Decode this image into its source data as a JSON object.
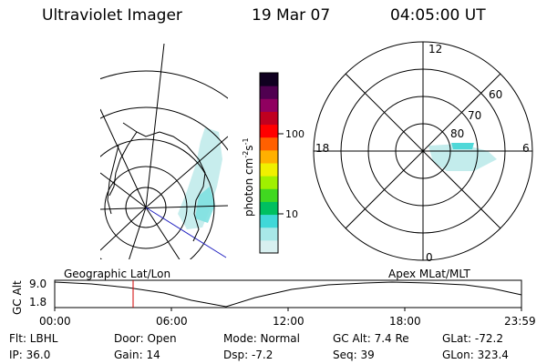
{
  "header": {
    "instrument": "Ultraviolet Imager",
    "date": "19 Mar 07",
    "time": "04:05:00 UT"
  },
  "colorbar": {
    "unit_label": "photon cm",
    "unit_exp1": "-2",
    "unit_mid": "s",
    "unit_exp2": "-1",
    "tick_100": "100",
    "tick_10": "10",
    "colors": [
      "#d8f0f0",
      "#a8e8e8",
      "#40d8d8",
      "#00c060",
      "#40d820",
      "#a0f000",
      "#f0f000",
      "#ffb000",
      "#ff6000",
      "#ff0000",
      "#c00020",
      "#900060",
      "#500050",
      "#100020"
    ]
  },
  "geo_map": {
    "caption": "Geographic Lat/Lon"
  },
  "polar_map": {
    "caption": "Apex MLat/MLT",
    "mlt_12": "12",
    "mlt_6": "6",
    "mlt_18": "18",
    "mlt_0": "0",
    "lat_60": "60",
    "lat_70": "70",
    "lat_80": "80"
  },
  "orbit_plot": {
    "ylabel": "GC Alt",
    "ytick_top": "9.0",
    "ytick_bottom": "1.8",
    "xticks": [
      "00:00",
      "06:00",
      "12:00",
      "18:00",
      "23:59"
    ],
    "current_time_marker_color": "#d00000"
  },
  "status": {
    "flt": "Flt: LBHL",
    "ip": "IP: 36.0",
    "door": "Door: Open",
    "gain": "Gain: 14",
    "mode": "Mode: Normal",
    "dsp": "Dsp:    -7.2",
    "gcalt": "GC Alt: 7.4 Re",
    "seq": "Seq: 39",
    "glat": "GLat: -72.2",
    "glon": "GLon: 323.4"
  }
}
